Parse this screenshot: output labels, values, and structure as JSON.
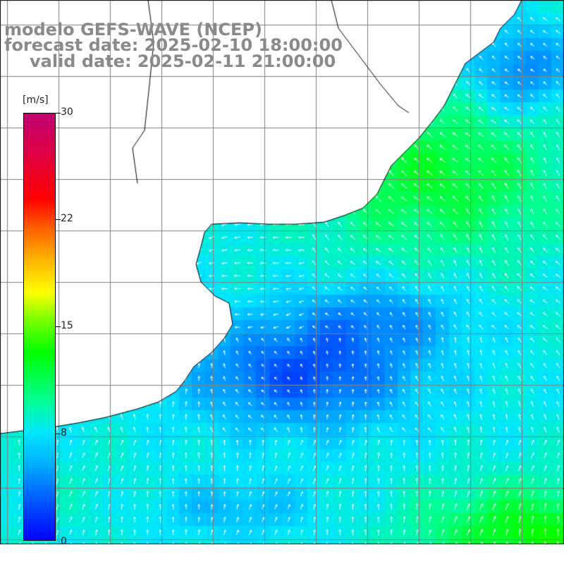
{
  "title": {
    "line1": "modelo GEFS-WAVE (NCEP)",
    "line2": "forecast date: 2025-02-10 18:00:00",
    "line3": "valid date: 2025-02-11 21:00:00"
  },
  "colorbar": {
    "unit": "[m/s]",
    "labels": [
      "30",
      "22",
      "15",
      "8",
      "0"
    ],
    "values": [
      30,
      22,
      15,
      8,
      0
    ],
    "min": 0,
    "max": 30
  },
  "map": {
    "variable": "wind speed and direction",
    "region": "South Atlantic off southern Brazil / Uruguay / Argentina",
    "colors": {
      "background": "#ffffff",
      "coastline": "#000000",
      "grid": "#808080",
      "arrows": "#ffffff"
    }
  }
}
